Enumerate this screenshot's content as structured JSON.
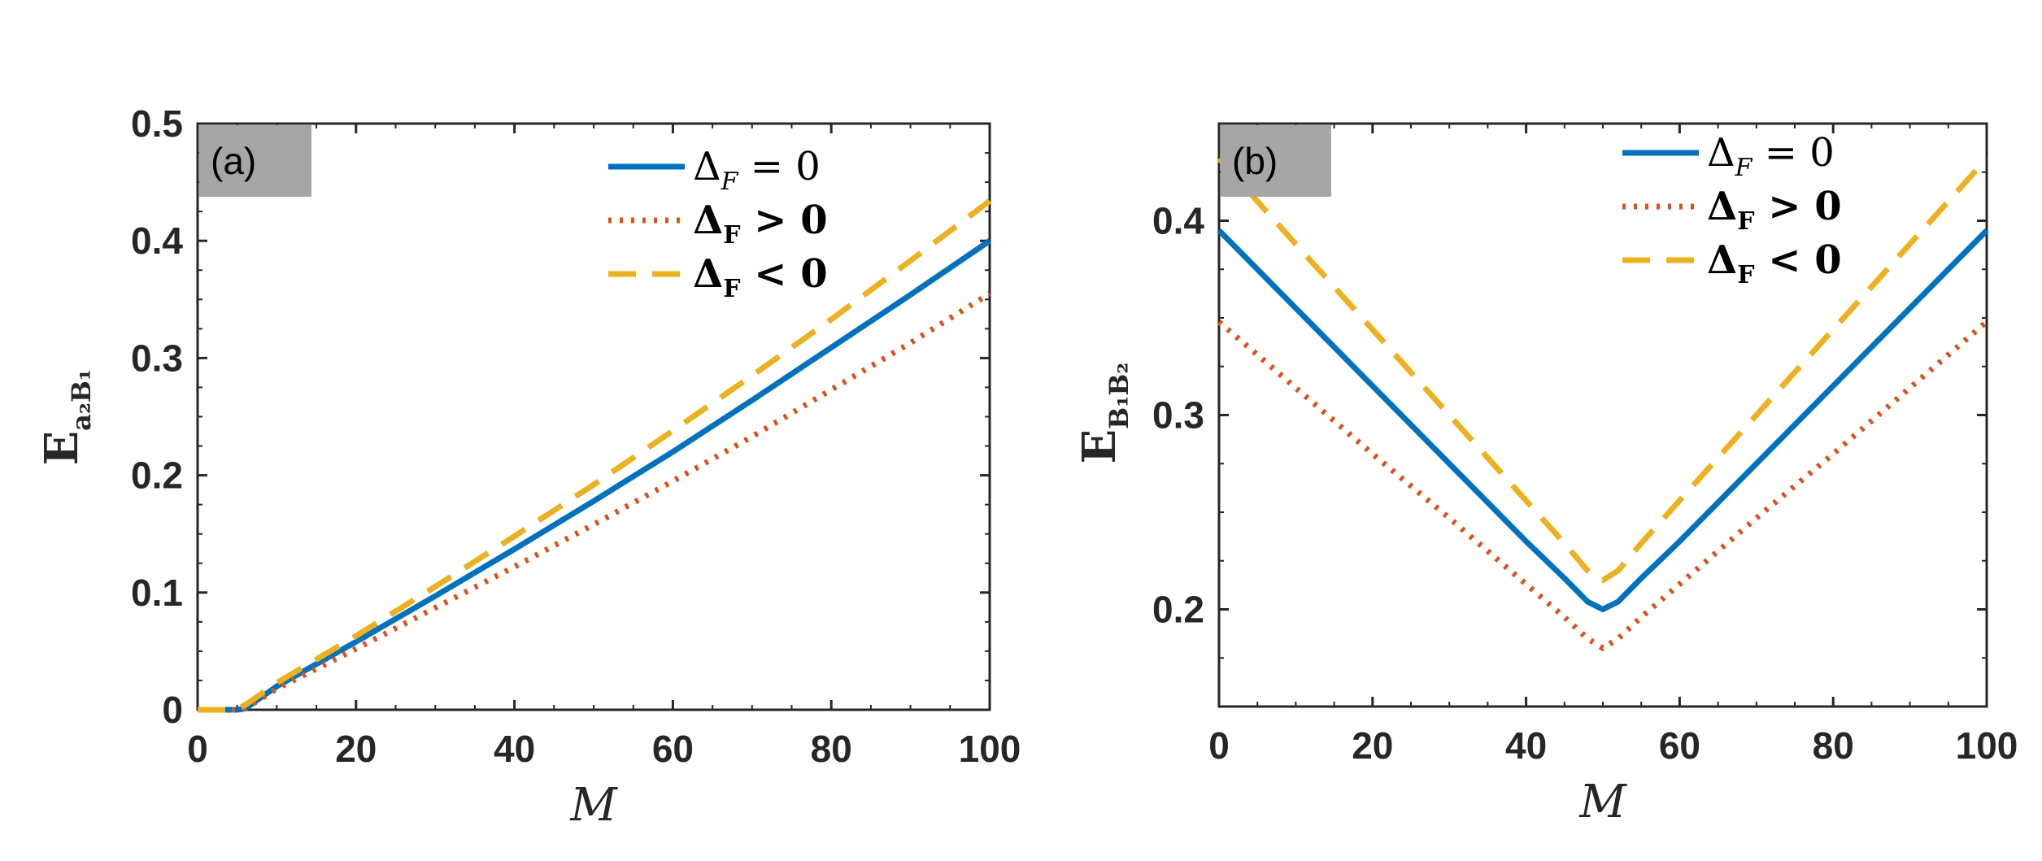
{
  "chart_data": [
    {
      "type": "line",
      "panel_label": "(a)",
      "xlabel": "M",
      "ylabel": "E",
      "ylabel_sub": "a₂B₁",
      "xlim": [
        0,
        100
      ],
      "ylim": [
        0,
        0.5
      ],
      "xticks": [
        "0",
        "20",
        "40",
        "60",
        "80",
        "100"
      ],
      "yticks": [
        "0",
        "0.1",
        "0.2",
        "0.3",
        "0.4",
        "0.5"
      ],
      "legend_position": "top-right",
      "x": [
        0,
        4,
        5,
        6,
        10,
        20,
        30,
        40,
        50,
        60,
        70,
        80,
        90,
        100
      ],
      "series": [
        {
          "name": "ΔF = 0",
          "legend_main": "Δ",
          "legend_sub": "F",
          "legend_rest": " = 0",
          "bold": false,
          "style": "solid",
          "color": "#0072BD",
          "values": [
            0,
            0,
            0,
            0.001,
            0.02,
            0.058,
            0.097,
            0.137,
            0.178,
            0.22,
            0.264,
            0.309,
            0.354,
            0.4
          ]
        },
        {
          "name": "ΔF > 0",
          "legend_main": "Δ",
          "legend_sub": "F",
          "legend_rest": " > 0",
          "bold": true,
          "style": "dotted",
          "color": "#D95319",
          "values": [
            0,
            0,
            0,
            0.001,
            0.018,
            0.052,
            0.087,
            0.122,
            0.158,
            0.195,
            0.233,
            0.273,
            0.313,
            0.355
          ]
        },
        {
          "name": "ΔF < 0",
          "legend_main": "Δ",
          "legend_sub": "F",
          "legend_rest": " < 0",
          "bold": true,
          "style": "dashed",
          "color": "#EDB120",
          "values": [
            0,
            0,
            0.001,
            0.004,
            0.023,
            0.063,
            0.105,
            0.148,
            0.192,
            0.238,
            0.285,
            0.333,
            0.383,
            0.434
          ]
        }
      ]
    },
    {
      "type": "line",
      "panel_label": "(b)",
      "xlabel": "M",
      "ylabel": "E",
      "ylabel_sub": "B₁B₂",
      "xlim": [
        0,
        100
      ],
      "ylim": [
        0.15,
        0.45
      ],
      "xticks": [
        "0",
        "20",
        "40",
        "60",
        "80",
        "100"
      ],
      "yticks": [
        "0.2",
        "0.3",
        "0.4"
      ],
      "legend_position": "top-right",
      "x": [
        0,
        10,
        20,
        30,
        40,
        45,
        48,
        50,
        52,
        55,
        60,
        70,
        80,
        90,
        100
      ],
      "series": [
        {
          "name": "ΔF = 0",
          "legend_main": "Δ",
          "legend_sub": "F",
          "legend_rest": " = 0",
          "bold": false,
          "style": "solid",
          "color": "#0072BD",
          "values": [
            0.395,
            0.355,
            0.315,
            0.275,
            0.235,
            0.216,
            0.204,
            0.2,
            0.204,
            0.216,
            0.235,
            0.275,
            0.315,
            0.355,
            0.395
          ]
        },
        {
          "name": "ΔF > 0",
          "legend_main": "Δ",
          "legend_sub": "F",
          "legend_rest": " > 0",
          "bold": true,
          "style": "dotted",
          "color": "#D95319",
          "values": [
            0.348,
            0.314,
            0.28,
            0.247,
            0.213,
            0.196,
            0.185,
            0.18,
            0.185,
            0.196,
            0.213,
            0.247,
            0.28,
            0.314,
            0.348
          ]
        },
        {
          "name": "ΔF < 0",
          "legend_main": "Δ",
          "legend_sub": "F",
          "legend_rest": " < 0",
          "bold": true,
          "style": "dashed",
          "color": "#EDB120",
          "values": [
            0.432,
            0.388,
            0.344,
            0.3,
            0.256,
            0.234,
            0.22,
            0.215,
            0.22,
            0.234,
            0.256,
            0.3,
            0.344,
            0.388,
            0.432
          ]
        }
      ]
    }
  ]
}
